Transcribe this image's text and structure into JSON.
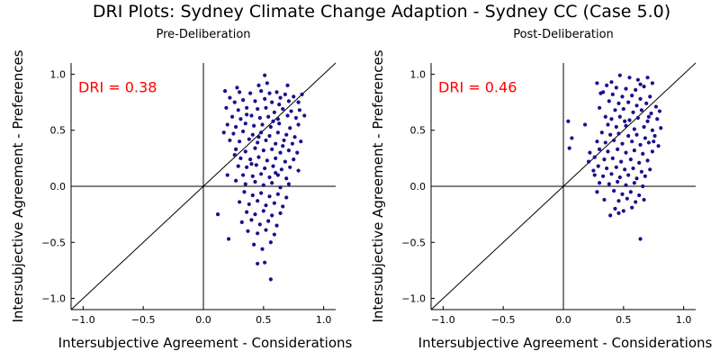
{
  "figure": {
    "title": "DRI Plots: Sydney Climate Change Adaption - Sydney CC (Case 5.0)"
  },
  "chart_data": [
    {
      "type": "scatter",
      "title": "Pre-Deliberation",
      "xlabel": "Intersubjective Agreement - Considerations",
      "ylabel": "Intersubjective Agreement - Preferences",
      "xlim": [
        -1.1,
        1.1
      ],
      "ylim": [
        -1.1,
        1.1
      ],
      "xticks": [
        {
          "v": -1.0,
          "label": "−1.0"
        },
        {
          "v": -0.5,
          "label": "−0.5"
        },
        {
          "v": 0.0,
          "label": "0.0"
        },
        {
          "v": 0.5,
          "label": "0.5"
        },
        {
          "v": 1.0,
          "label": "1.0"
        }
      ],
      "yticks": [
        {
          "v": -1.0,
          "label": "−1.0"
        },
        {
          "v": -0.5,
          "label": "−0.5"
        },
        {
          "v": 0.0,
          "label": "0.0"
        },
        {
          "v": 0.5,
          "label": "0.5"
        },
        {
          "v": 1.0,
          "label": "1.0"
        }
      ],
      "annotation": "DRI = 0.38",
      "color": "#1a0f8c",
      "points": [
        [
          0.51,
          0.99
        ],
        [
          0.46,
          0.9
        ],
        [
          0.53,
          0.92
        ],
        [
          0.18,
          0.85
        ],
        [
          0.3,
          0.84
        ],
        [
          0.39,
          0.83
        ],
        [
          0.48,
          0.85
        ],
        [
          0.55,
          0.83
        ],
        [
          0.61,
          0.84
        ],
        [
          0.68,
          0.82
        ],
        [
          0.75,
          0.8
        ],
        [
          0.82,
          0.82
        ],
        [
          0.22,
          0.79
        ],
        [
          0.26,
          0.75
        ],
        [
          0.33,
          0.77
        ],
        [
          0.43,
          0.76
        ],
        [
          0.51,
          0.78
        ],
        [
          0.57,
          0.75
        ],
        [
          0.64,
          0.79
        ],
        [
          0.71,
          0.76
        ],
        [
          0.79,
          0.75
        ],
        [
          0.19,
          0.7
        ],
        [
          0.29,
          0.68
        ],
        [
          0.36,
          0.7
        ],
        [
          0.45,
          0.69
        ],
        [
          0.52,
          0.7
        ],
        [
          0.59,
          0.66
        ],
        [
          0.66,
          0.69
        ],
        [
          0.73,
          0.67
        ],
        [
          0.8,
          0.68
        ],
        [
          0.24,
          0.62
        ],
        [
          0.31,
          0.6
        ],
        [
          0.4,
          0.63
        ],
        [
          0.47,
          0.61
        ],
        [
          0.54,
          0.62
        ],
        [
          0.62,
          0.6
        ],
        [
          0.7,
          0.63
        ],
        [
          0.77,
          0.61
        ],
        [
          0.84,
          0.63
        ],
        [
          0.2,
          0.55
        ],
        [
          0.27,
          0.53
        ],
        [
          0.35,
          0.56
        ],
        [
          0.42,
          0.54
        ],
        [
          0.49,
          0.55
        ],
        [
          0.56,
          0.53
        ],
        [
          0.63,
          0.56
        ],
        [
          0.72,
          0.52
        ],
        [
          0.79,
          0.55
        ],
        [
          0.17,
          0.48
        ],
        [
          0.25,
          0.47
        ],
        [
          0.33,
          0.49
        ],
        [
          0.41,
          0.46
        ],
        [
          0.48,
          0.48
        ],
        [
          0.55,
          0.45
        ],
        [
          0.62,
          0.48
        ],
        [
          0.69,
          0.46
        ],
        [
          0.76,
          0.44
        ],
        [
          0.22,
          0.41
        ],
        [
          0.3,
          0.4
        ],
        [
          0.38,
          0.42
        ],
        [
          0.45,
          0.39
        ],
        [
          0.52,
          0.41
        ],
        [
          0.6,
          0.38
        ],
        [
          0.67,
          0.41
        ],
        [
          0.74,
          0.38
        ],
        [
          0.81,
          0.4
        ],
        [
          0.27,
          0.33
        ],
        [
          0.35,
          0.31
        ],
        [
          0.43,
          0.34
        ],
        [
          0.5,
          0.32
        ],
        [
          0.57,
          0.33
        ],
        [
          0.64,
          0.3
        ],
        [
          0.71,
          0.32
        ],
        [
          0.78,
          0.3
        ],
        [
          0.31,
          0.25
        ],
        [
          0.39,
          0.24
        ],
        [
          0.46,
          0.26
        ],
        [
          0.53,
          0.23
        ],
        [
          0.6,
          0.25
        ],
        [
          0.68,
          0.22
        ],
        [
          0.75,
          0.24
        ],
        [
          0.29,
          0.18
        ],
        [
          0.36,
          0.17
        ],
        [
          0.44,
          0.19
        ],
        [
          0.51,
          0.16
        ],
        [
          0.58,
          0.18
        ],
        [
          0.65,
          0.15
        ],
        [
          0.72,
          0.17
        ],
        [
          0.79,
          0.14
        ],
        [
          0.33,
          0.1
        ],
        [
          0.41,
          0.09
        ],
        [
          0.48,
          0.11
        ],
        [
          0.55,
          0.08
        ],
        [
          0.62,
          0.1
        ],
        [
          0.69,
          0.07
        ],
        [
          0.2,
          0.1
        ],
        [
          0.27,
          0.05
        ],
        [
          0.35,
          0.02
        ],
        [
          0.43,
          0.04
        ],
        [
          0.5,
          0.01
        ],
        [
          0.57,
          0.03
        ],
        [
          0.64,
          -0.01
        ],
        [
          0.71,
          0.02
        ],
        [
          0.34,
          -0.05
        ],
        [
          0.41,
          -0.08
        ],
        [
          0.48,
          -0.06
        ],
        [
          0.55,
          -0.09
        ],
        [
          0.62,
          -0.07
        ],
        [
          0.69,
          -0.1
        ],
        [
          0.3,
          -0.14
        ],
        [
          0.38,
          -0.16
        ],
        [
          0.45,
          -0.13
        ],
        [
          0.52,
          -0.17
        ],
        [
          0.59,
          -0.15
        ],
        [
          0.66,
          -0.18
        ],
        [
          0.36,
          -0.23
        ],
        [
          0.43,
          -0.25
        ],
        [
          0.5,
          -0.22
        ],
        [
          0.57,
          -0.26
        ],
        [
          0.64,
          -0.24
        ],
        [
          0.32,
          -0.32
        ],
        [
          0.4,
          -0.3
        ],
        [
          0.47,
          -0.34
        ],
        [
          0.54,
          -0.31
        ],
        [
          0.61,
          -0.35
        ],
        [
          0.37,
          -0.4
        ],
        [
          0.45,
          -0.42
        ],
        [
          0.52,
          -0.39
        ],
        [
          0.59,
          -0.43
        ],
        [
          0.12,
          -0.25
        ],
        [
          0.21,
          -0.47
        ],
        [
          0.42,
          -0.52
        ],
        [
          0.49,
          -0.56
        ],
        [
          0.56,
          -0.5
        ],
        [
          0.51,
          -0.68
        ],
        [
          0.45,
          -0.69
        ],
        [
          0.56,
          -0.83
        ],
        [
          0.28,
          0.88
        ],
        [
          0.7,
          0.9
        ],
        [
          0.36,
          0.64
        ],
        [
          0.58,
          0.58
        ],
        [
          0.66,
          0.36
        ],
        [
          0.4,
          0.2
        ],
        [
          0.6,
          0.12
        ],
        [
          0.26,
          0.28
        ],
        [
          0.46,
          0.44
        ],
        [
          0.63,
          0.73
        ]
      ]
    },
    {
      "type": "scatter",
      "title": "Post-Deliberation",
      "xlabel": "Intersubjective Agreement - Considerations",
      "ylabel": "Intersubjective Agreement - Preferences",
      "xlim": [
        -1.1,
        1.1
      ],
      "ylim": [
        -1.1,
        1.1
      ],
      "xticks": [
        {
          "v": -1.0,
          "label": "−1.0"
        },
        {
          "v": -0.5,
          "label": "−0.5"
        },
        {
          "v": 0.0,
          "label": "0.0"
        },
        {
          "v": 0.5,
          "label": "0.5"
        },
        {
          "v": 1.0,
          "label": "1.0"
        }
      ],
      "yticks": [
        {
          "v": -1.0,
          "label": "−1.0"
        },
        {
          "v": -0.5,
          "label": "−0.5"
        },
        {
          "v": 0.0,
          "label": "0.0"
        },
        {
          "v": 0.5,
          "label": "0.5"
        },
        {
          "v": 1.0,
          "label": "1.0"
        }
      ],
      "annotation": "DRI = 0.46",
      "color": "#1a0f8c",
      "points": [
        [
          0.47,
          0.99
        ],
        [
          0.55,
          0.97
        ],
        [
          0.62,
          0.95
        ],
        [
          0.7,
          0.97
        ],
        [
          0.74,
          0.92
        ],
        [
          0.28,
          0.92
        ],
        [
          0.36,
          0.9
        ],
        [
          0.44,
          0.88
        ],
        [
          0.52,
          0.87
        ],
        [
          0.6,
          0.86
        ],
        [
          0.67,
          0.89
        ],
        [
          0.33,
          0.84
        ],
        [
          0.41,
          0.82
        ],
        [
          0.49,
          0.8
        ],
        [
          0.57,
          0.81
        ],
        [
          0.64,
          0.78
        ],
        [
          0.72,
          0.8
        ],
        [
          0.38,
          0.76
        ],
        [
          0.46,
          0.74
        ],
        [
          0.54,
          0.75
        ],
        [
          0.61,
          0.72
        ],
        [
          0.69,
          0.74
        ],
        [
          0.77,
          0.71
        ],
        [
          0.3,
          0.7
        ],
        [
          0.43,
          0.68
        ],
        [
          0.5,
          0.69
        ],
        [
          0.58,
          0.66
        ],
        [
          0.65,
          0.68
        ],
        [
          0.73,
          0.65
        ],
        [
          0.8,
          0.67
        ],
        [
          0.35,
          0.62
        ],
        [
          0.4,
          0.6
        ],
        [
          0.47,
          0.62
        ],
        [
          0.55,
          0.59
        ],
        [
          0.62,
          0.61
        ],
        [
          0.7,
          0.58
        ],
        [
          0.78,
          0.6
        ],
        [
          0.04,
          0.58
        ],
        [
          0.18,
          0.55
        ],
        [
          0.37,
          0.55
        ],
        [
          0.44,
          0.53
        ],
        [
          0.52,
          0.54
        ],
        [
          0.59,
          0.51
        ],
        [
          0.67,
          0.53
        ],
        [
          0.74,
          0.5
        ],
        [
          0.81,
          0.52
        ],
        [
          0.32,
          0.48
        ],
        [
          0.39,
          0.46
        ],
        [
          0.46,
          0.47
        ],
        [
          0.54,
          0.45
        ],
        [
          0.61,
          0.46
        ],
        [
          0.68,
          0.43
        ],
        [
          0.76,
          0.45
        ],
        [
          0.07,
          0.43
        ],
        [
          0.28,
          0.4
        ],
        [
          0.35,
          0.39
        ],
        [
          0.42,
          0.41
        ],
        [
          0.49,
          0.38
        ],
        [
          0.57,
          0.4
        ],
        [
          0.64,
          0.37
        ],
        [
          0.71,
          0.39
        ],
        [
          0.79,
          0.36
        ],
        [
          0.3,
          0.33
        ],
        [
          0.37,
          0.31
        ],
        [
          0.45,
          0.33
        ],
        [
          0.52,
          0.3
        ],
        [
          0.59,
          0.32
        ],
        [
          0.66,
          0.29
        ],
        [
          0.74,
          0.31
        ],
        [
          0.05,
          0.34
        ],
        [
          0.26,
          0.26
        ],
        [
          0.34,
          0.24
        ],
        [
          0.41,
          0.25
        ],
        [
          0.48,
          0.22
        ],
        [
          0.56,
          0.24
        ],
        [
          0.63,
          0.21
        ],
        [
          0.7,
          0.23
        ],
        [
          0.21,
          0.22
        ],
        [
          0.29,
          0.18
        ],
        [
          0.36,
          0.16
        ],
        [
          0.44,
          0.17
        ],
        [
          0.51,
          0.15
        ],
        [
          0.58,
          0.16
        ],
        [
          0.65,
          0.13
        ],
        [
          0.72,
          0.15
        ],
        [
          0.26,
          0.1
        ],
        [
          0.33,
          0.09
        ],
        [
          0.4,
          0.11
        ],
        [
          0.47,
          0.08
        ],
        [
          0.54,
          0.1
        ],
        [
          0.61,
          0.07
        ],
        [
          0.68,
          0.09
        ],
        [
          0.3,
          0.03
        ],
        [
          0.38,
          0.02
        ],
        [
          0.45,
          0.04
        ],
        [
          0.52,
          0.01
        ],
        [
          0.59,
          0.03
        ],
        [
          0.66,
          0.0
        ],
        [
          0.28,
          -0.05
        ],
        [
          0.42,
          -0.04
        ],
        [
          0.49,
          -0.07
        ],
        [
          0.56,
          -0.05
        ],
        [
          0.63,
          -0.08
        ],
        [
          0.34,
          -0.12
        ],
        [
          0.46,
          -0.13
        ],
        [
          0.53,
          -0.11
        ],
        [
          0.6,
          -0.14
        ],
        [
          0.67,
          -0.12
        ],
        [
          0.43,
          -0.2
        ],
        [
          0.5,
          -0.22
        ],
        [
          0.57,
          -0.19
        ],
        [
          0.39,
          -0.26
        ],
        [
          0.46,
          -0.24
        ],
        [
          0.64,
          -0.47
        ],
        [
          0.31,
          0.83
        ],
        [
          0.64,
          0.91
        ],
        [
          0.71,
          0.62
        ],
        [
          0.25,
          0.14
        ],
        [
          0.51,
          0.58
        ],
        [
          0.75,
          0.4
        ],
        [
          0.4,
          0.93
        ],
        [
          0.22,
          0.3
        ]
      ]
    }
  ]
}
